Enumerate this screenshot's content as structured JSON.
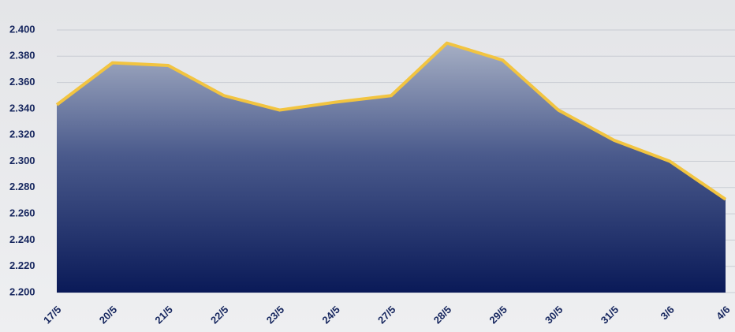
{
  "chart_data": {
    "type": "area",
    "categories": [
      "17/5",
      "20/5",
      "21/5",
      "22/5",
      "23/5",
      "24/5",
      "27/5",
      "28/5",
      "29/5",
      "30/5",
      "31/5",
      "3/6",
      "4/6"
    ],
    "values": [
      2343,
      2375,
      2373,
      2350,
      2339,
      2345,
      2350,
      2390,
      2377,
      2339,
      2316,
      2300,
      2271
    ],
    "color": "#f2c440",
    "ylim": [
      2200,
      2400
    ],
    "yticks": [
      {
        "value": 2200,
        "label": "2.200"
      },
      {
        "value": 2220,
        "label": "2.220"
      },
      {
        "value": 2240,
        "label": "2.240"
      },
      {
        "value": 2260,
        "label": "2.260"
      },
      {
        "value": 2280,
        "label": "2.280"
      },
      {
        "value": 2300,
        "label": "2.300"
      },
      {
        "value": 2320,
        "label": "2.320"
      },
      {
        "value": 2340,
        "label": "2.340"
      },
      {
        "value": 2360,
        "label": "2.360"
      },
      {
        "value": 2380,
        "label": "2.380"
      },
      {
        "value": 2400,
        "label": "2.400"
      }
    ],
    "grid": true
  }
}
